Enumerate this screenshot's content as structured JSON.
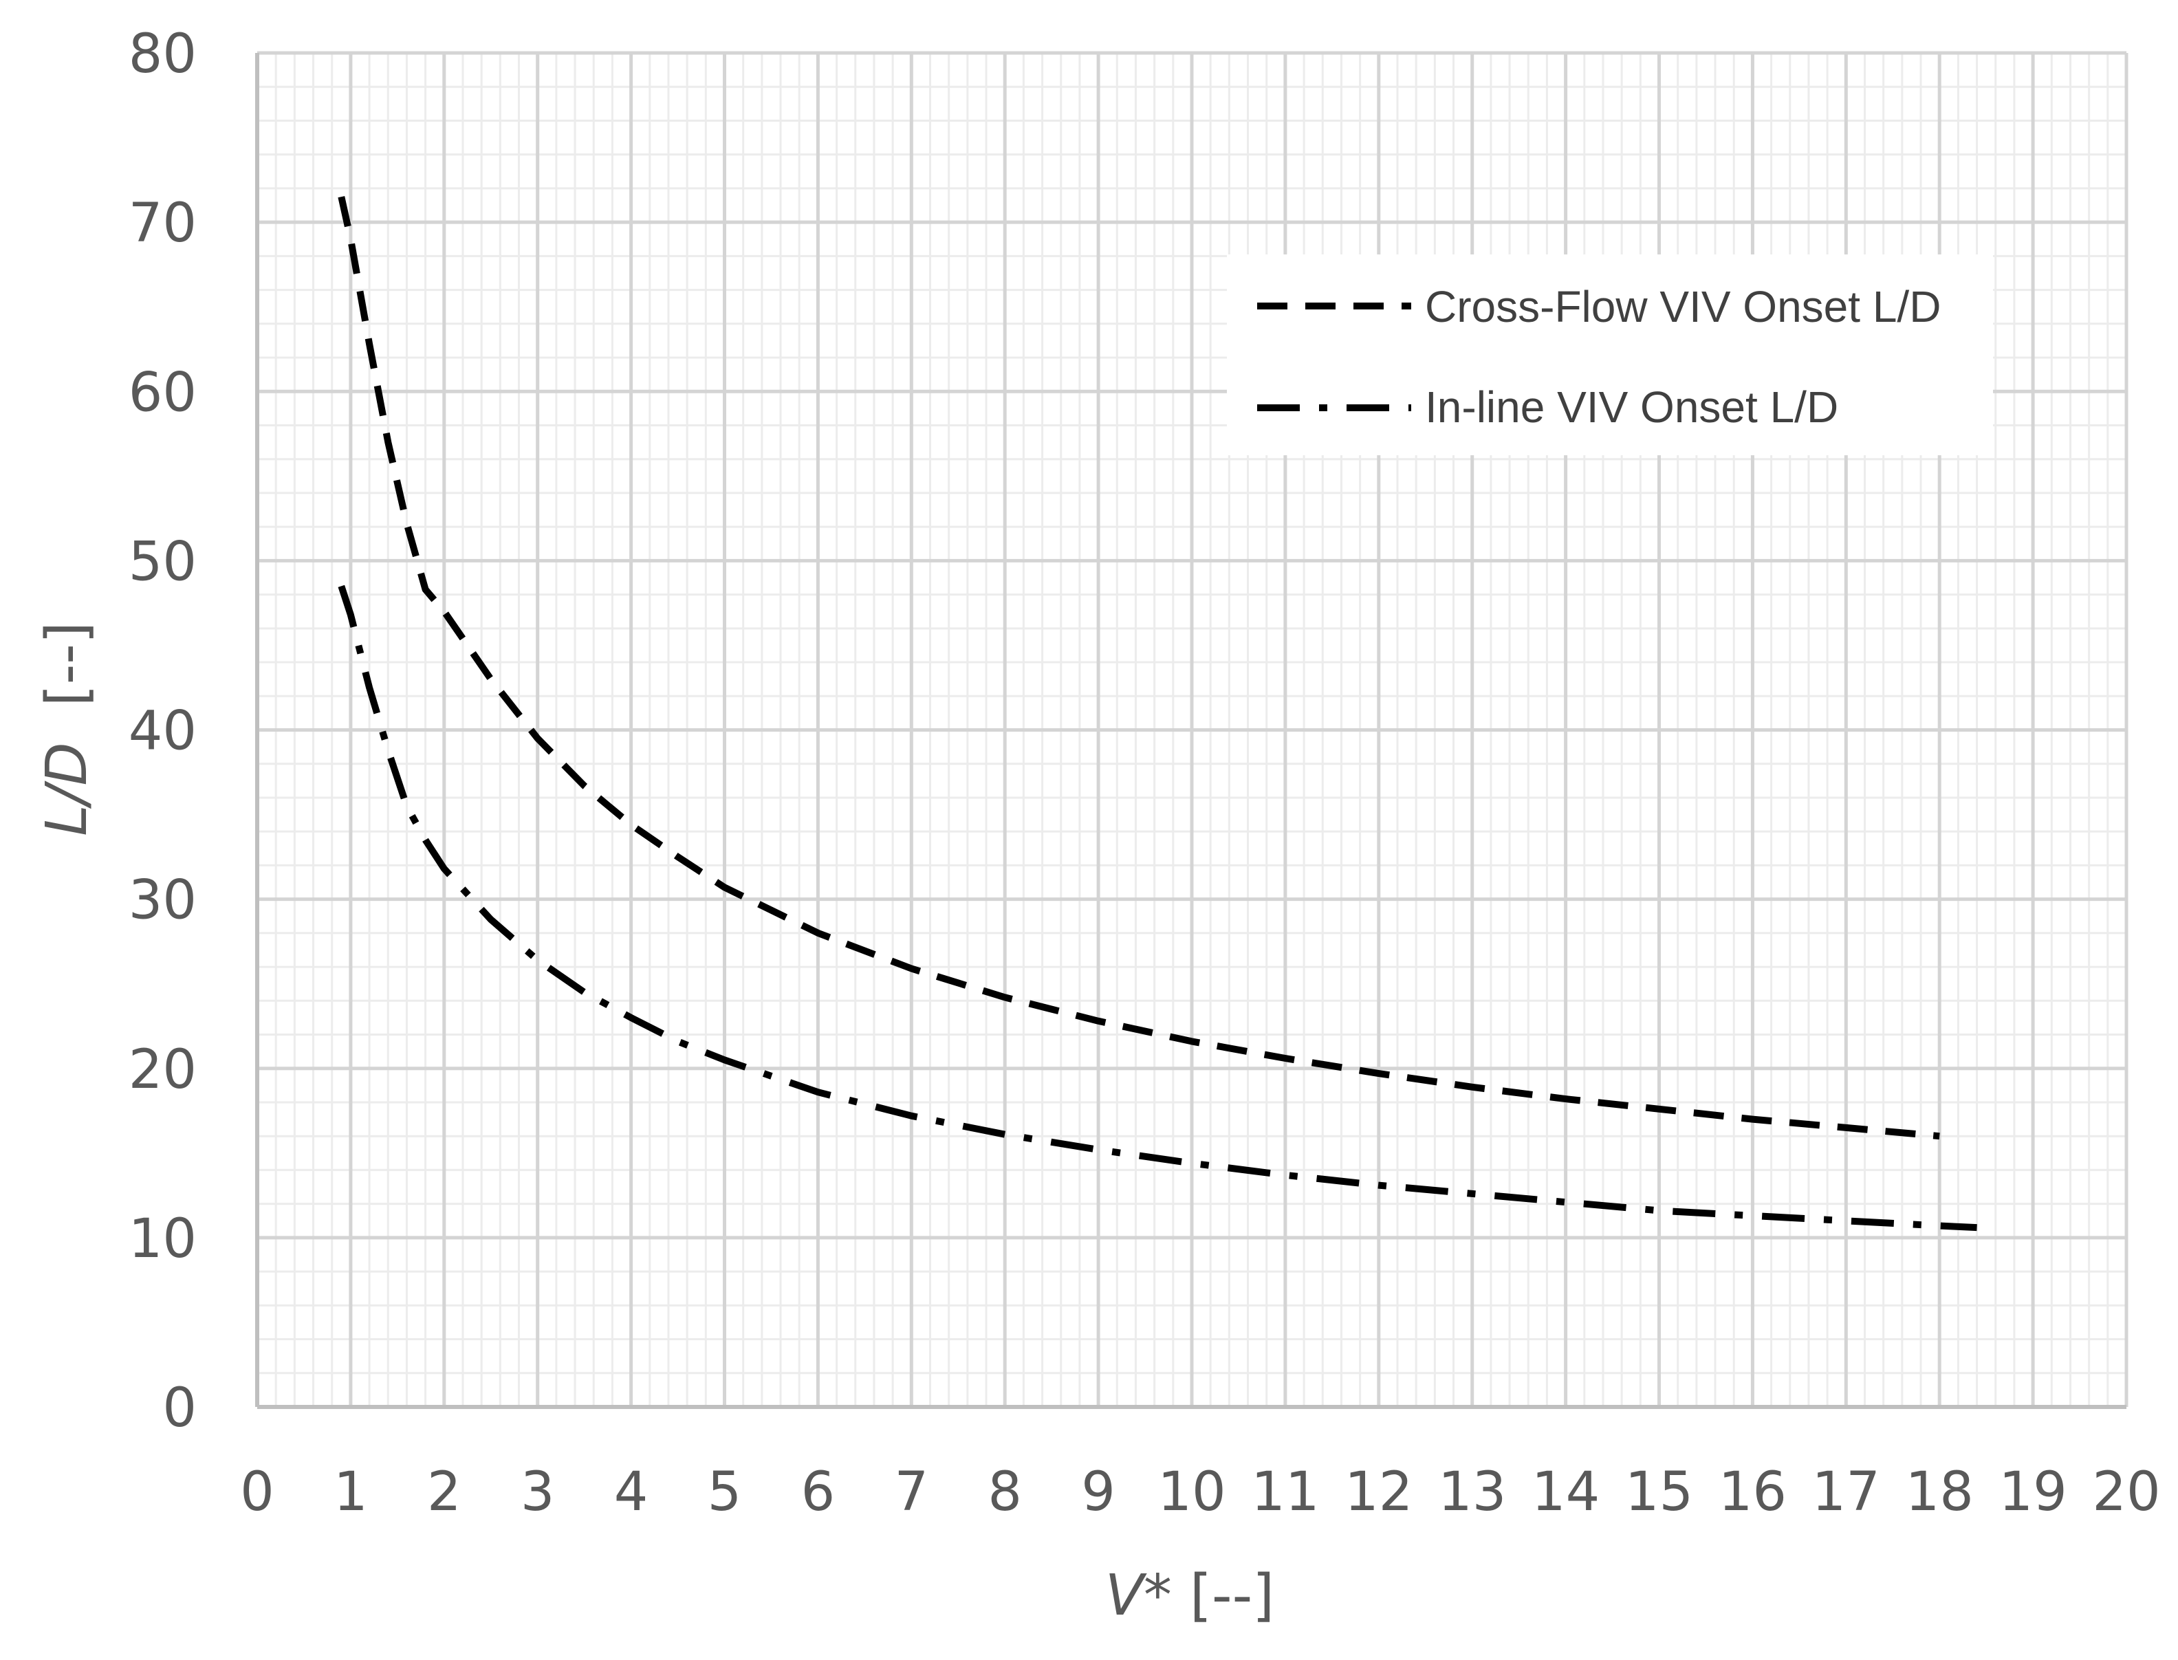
{
  "chart_data": {
    "type": "line",
    "title": "",
    "xlabel": {
      "var": "V*",
      "unit": " [--]"
    },
    "ylabel": {
      "var": "L/D",
      "unit": "  [--]"
    },
    "xlim": [
      0,
      20
    ],
    "ylim": [
      0,
      80
    ],
    "xticks": [
      0,
      1,
      2,
      3,
      4,
      5,
      6,
      7,
      8,
      9,
      10,
      11,
      12,
      13,
      14,
      15,
      16,
      17,
      18,
      19,
      20
    ],
    "yticks": [
      0,
      10,
      20,
      30,
      40,
      50,
      60,
      70,
      80
    ],
    "grid": {
      "major": true,
      "minor": true
    },
    "legend": {
      "position": "top-right"
    },
    "series": [
      {
        "name": "Cross-Flow VIV Onset L/D",
        "style": "dashed",
        "color": "#000000",
        "points": [
          [
            0.9,
            71.5
          ],
          [
            1.0,
            69.0
          ],
          [
            1.2,
            62.8
          ],
          [
            1.4,
            57.0
          ],
          [
            1.6,
            52.2
          ],
          [
            1.8,
            48.3
          ],
          [
            2.0,
            47.0
          ],
          [
            2.5,
            43.0
          ],
          [
            3.0,
            39.5
          ],
          [
            3.5,
            36.7
          ],
          [
            4.0,
            34.4
          ],
          [
            4.5,
            32.5
          ],
          [
            5.0,
            30.7
          ],
          [
            6.0,
            28.0
          ],
          [
            7.0,
            25.9
          ],
          [
            8.0,
            24.2
          ],
          [
            9.0,
            22.8
          ],
          [
            10.0,
            21.6
          ],
          [
            11.0,
            20.6
          ],
          [
            12.0,
            19.7
          ],
          [
            13.0,
            18.9
          ],
          [
            14.0,
            18.2
          ],
          [
            15.0,
            17.6
          ],
          [
            16.0,
            17.0
          ],
          [
            17.0,
            16.5
          ],
          [
            18.0,
            16.0
          ]
        ]
      },
      {
        "name": "In-line VIV Onset L/D",
        "style": "dashdot",
        "color": "#000000",
        "points": [
          [
            0.9,
            48.5
          ],
          [
            1.0,
            46.8
          ],
          [
            1.2,
            42.5
          ],
          [
            1.4,
            38.8
          ],
          [
            1.6,
            35.5
          ],
          [
            1.8,
            33.5
          ],
          [
            2.0,
            31.8
          ],
          [
            2.5,
            28.8
          ],
          [
            3.0,
            26.4
          ],
          [
            3.5,
            24.5
          ],
          [
            4.0,
            23.0
          ],
          [
            4.5,
            21.6
          ],
          [
            5.0,
            20.5
          ],
          [
            6.0,
            18.6
          ],
          [
            7.0,
            17.2
          ],
          [
            8.0,
            16.1
          ],
          [
            9.0,
            15.2
          ],
          [
            10.0,
            14.4
          ],
          [
            11.0,
            13.7
          ],
          [
            12.0,
            13.1
          ],
          [
            13.0,
            12.6
          ],
          [
            14.0,
            12.1
          ],
          [
            15.0,
            11.6
          ],
          [
            16.0,
            11.3
          ],
          [
            17.0,
            11.0
          ],
          [
            18.0,
            10.7
          ],
          [
            18.4,
            10.6
          ]
        ]
      }
    ]
  }
}
